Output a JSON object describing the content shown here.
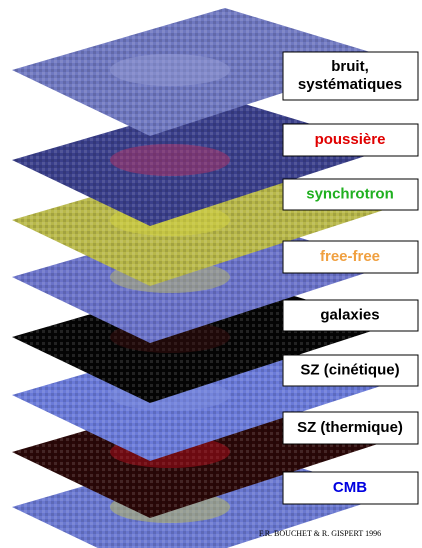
{
  "layers": [
    {
      "label": [
        "bruit,",
        "systématiques"
      ],
      "text_color": "#000000",
      "fill": "#6f78c0",
      "accent": "#9aa0d8"
    },
    {
      "label": [
        "poussière"
      ],
      "text_color": "#e00000",
      "fill": "#3a3f8a",
      "accent": "#c03060"
    },
    {
      "label": [
        "synchrotron"
      ],
      "text_color": "#20b020",
      "fill": "#b8b84a",
      "accent": "#d8d840"
    },
    {
      "label": [
        "free-free"
      ],
      "text_color": "#f0a040",
      "fill": "#6a72c8",
      "accent": "#c0c060"
    },
    {
      "label": [
        "galaxies"
      ],
      "text_color": "#000000",
      "fill": "#050505",
      "accent": "#401010"
    },
    {
      "label": [
        "SZ (cinétique)"
      ],
      "text_color": "#000000",
      "fill": "#6a7ad8",
      "accent": "#8090e0"
    },
    {
      "label": [
        "SZ (thermique)"
      ],
      "text_color": "#000000",
      "fill": "#2a0808",
      "accent": "#c01020"
    },
    {
      "label": [
        "CMB"
      ],
      "text_color": "#0000e0",
      "fill": "#6a78d0",
      "accent": "#c8c850"
    }
  ],
  "credit": "F.R. BOUCHET & R. GISPERT 1996"
}
